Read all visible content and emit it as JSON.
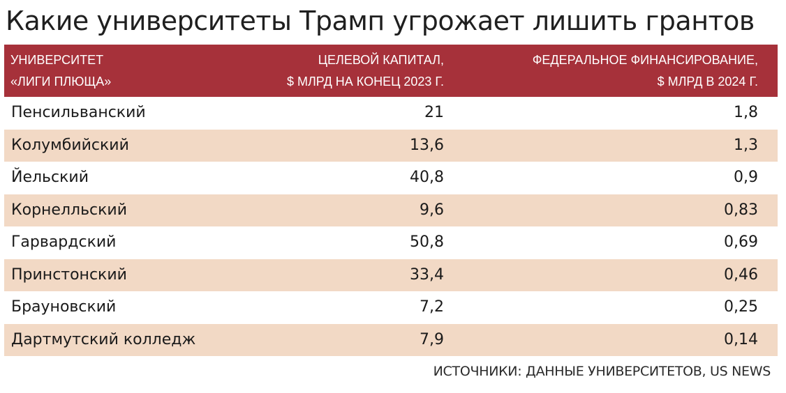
{
  "title": "Какие университеты Трамп угрожает лишить грантов",
  "source": "ИСТОЧНИКИ: ДАННЫЕ УНИВЕРСИТЕТОВ, US NEWS",
  "colors": {
    "header_bg": "#a6313a",
    "header_text": "#ffffff",
    "stripe_bg": "#f2d9c5"
  },
  "chart_data": {
    "type": "table",
    "columns": [
      "УНИВЕРСИТЕТ\n«ЛИГИ ПЛЮЩА»",
      "ЦЕЛЕВОЙ КАПИТАЛ,\n$ МЛРД НА КОНЕЦ 2023 Г.",
      "ФЕДЕРАЛЬНОЕ ФИНАНСИРОВАНИЕ,\n$ МЛРД В 2024 Г."
    ],
    "rows": [
      [
        "Пенсильванский",
        "21",
        "1,8"
      ],
      [
        "Колумбийский",
        "13,6",
        "1,3"
      ],
      [
        "Йельский",
        "40,8",
        "0,9"
      ],
      [
        "Корнелльский",
        "9,6",
        "0,83"
      ],
      [
        "Гарвардский",
        "50,8",
        "0,69"
      ],
      [
        "Принстонский",
        "33,4",
        "0,46"
      ],
      [
        "Брауновский",
        "7,2",
        "0,25"
      ],
      [
        "Дартмутский колледж",
        "7,9",
        "0,14"
      ]
    ]
  }
}
